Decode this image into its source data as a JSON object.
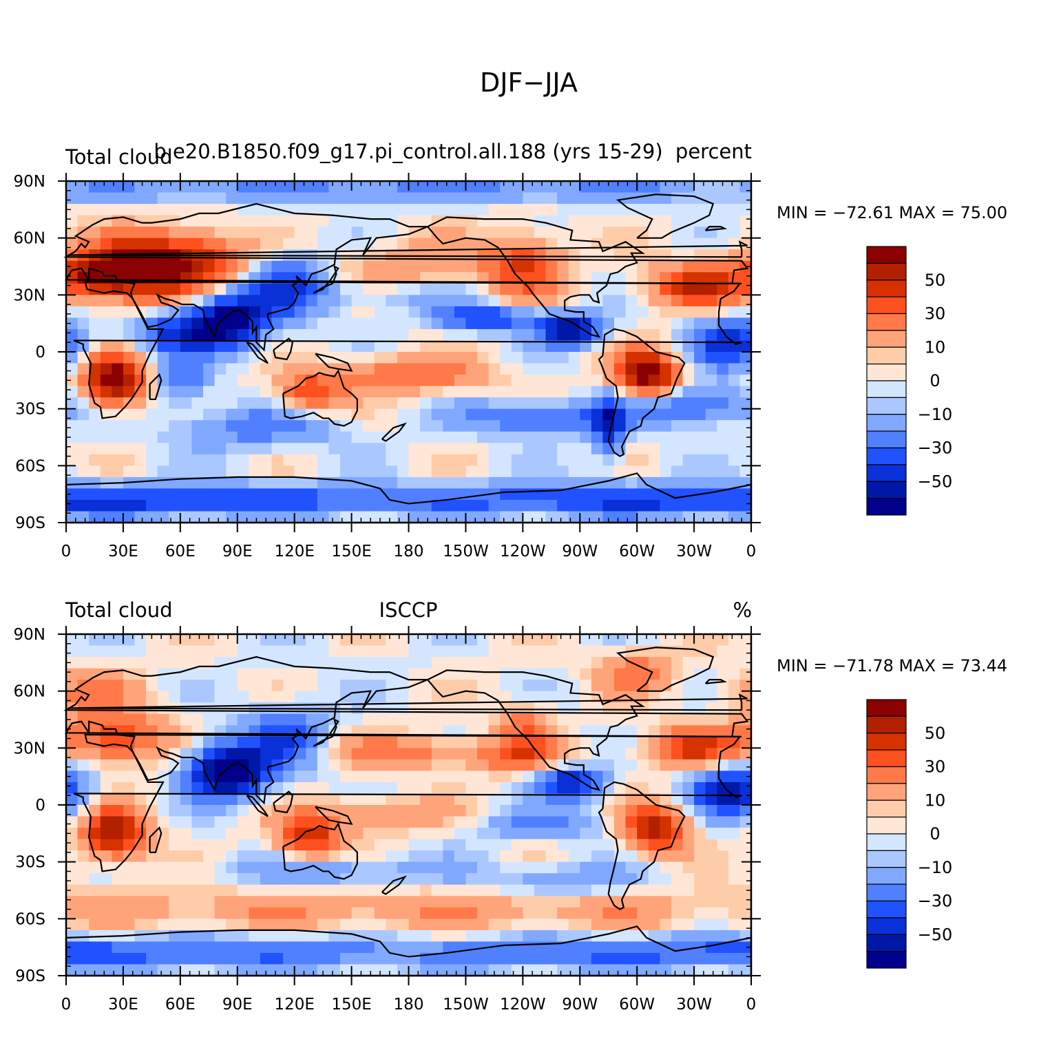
{
  "figure_title": "DJF−JJA",
  "lat_labels": [
    "90N",
    "60N",
    "30N",
    "0",
    "30S",
    "60S",
    "90S"
  ],
  "lon_labels": [
    "0",
    "30E",
    "60E",
    "90E",
    "120E",
    "150E",
    "180",
    "150W",
    "120W",
    "90W",
    "60W",
    "30W",
    "0"
  ],
  "colorbar_labels": [
    "50",
    "30",
    "10",
    "0",
    "−10",
    "−30",
    "−50"
  ],
  "colorbar_colors": [
    "#8b0000",
    "#b22000",
    "#d63200",
    "#ff5020",
    "#ff7a48",
    "#ffa47a",
    "#ffccaa",
    "#ffe6d6",
    "#d4e6ff",
    "#aac8ff",
    "#80a8ff",
    "#5080ff",
    "#2052ff",
    "#0a30d8",
    "#0018a8",
    "#00008b"
  ],
  "panels": [
    {
      "title_left": "Total cloud",
      "title_center": "b.e20.B1850.f09_g17.pi_control.all.188 (yrs 15-29)",
      "title_right": "percent",
      "stats": "MIN = −72.61  MAX =   75.00",
      "min": -72.61,
      "max": 75.0
    },
    {
      "title_left": "Total cloud",
      "title_center": "ISCCP",
      "title_right": "%",
      "stats": "MIN = −71.78  MAX =   73.44",
      "min": -71.78,
      "max": 73.44
    }
  ]
}
